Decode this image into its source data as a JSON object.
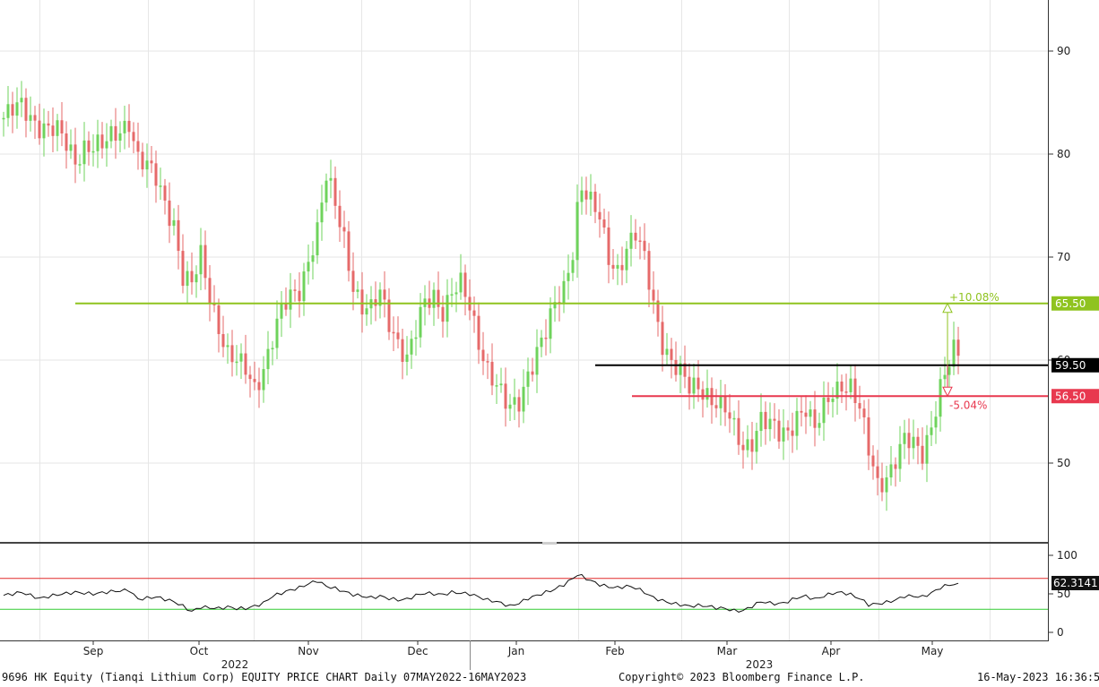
{
  "chart_data": {
    "type": "candlestick",
    "title": "9696 HK Equity (Tianqi Lithium Corp) EQUITY PRICE CHART",
    "period": "Daily 07MAY2022-16MAY2023",
    "price_axis": {
      "ticks": [
        50,
        60,
        70,
        80,
        90
      ]
    },
    "rsi_axis": {
      "ticks": [
        0,
        50,
        100
      ]
    },
    "x_months": [
      "Sep",
      "Oct",
      "Nov",
      "Dec",
      "Jan",
      "Feb",
      "Mar",
      "Apr",
      "May"
    ],
    "x_years": [
      "2022",
      "2023"
    ],
    "price_path": [
      [
        0,
        83.5
      ],
      [
        4,
        84.5
      ],
      [
        8,
        83.0
      ],
      [
        12,
        82.0
      ],
      [
        16,
        79.5
      ],
      [
        18,
        81.0
      ],
      [
        22,
        80.5
      ],
      [
        26,
        82.5
      ],
      [
        28,
        83.5
      ],
      [
        30,
        79.5
      ],
      [
        34,
        77.5
      ],
      [
        38,
        73.5
      ],
      [
        40,
        68.0
      ],
      [
        42,
        67.0
      ],
      [
        44,
        70.0
      ],
      [
        46,
        66.5
      ],
      [
        48,
        63.5
      ],
      [
        50,
        60.5
      ],
      [
        52,
        59.5
      ],
      [
        54,
        59.0
      ],
      [
        56,
        57.5
      ],
      [
        58,
        59.5
      ],
      [
        60,
        62.0
      ],
      [
        62,
        64.5
      ],
      [
        64,
        66.0
      ],
      [
        66,
        67.0
      ],
      [
        68,
        70.0
      ],
      [
        70,
        72.5
      ],
      [
        72,
        77.5
      ],
      [
        74,
        75.0
      ],
      [
        76,
        72.0
      ],
      [
        78,
        67.5
      ],
      [
        80,
        65.0
      ],
      [
        82,
        64.5
      ],
      [
        84,
        66.5
      ],
      [
        86,
        64.0
      ],
      [
        88,
        62.0
      ],
      [
        90,
        60.0
      ],
      [
        92,
        62.5
      ],
      [
        94,
        65.5
      ],
      [
        96,
        66.5
      ],
      [
        98,
        65.0
      ],
      [
        100,
        66.5
      ],
      [
        102,
        67.0
      ],
      [
        104,
        65.0
      ],
      [
        106,
        62.0
      ],
      [
        108,
        59.5
      ],
      [
        110,
        57.5
      ],
      [
        112,
        55.5
      ],
      [
        113,
        55.0
      ],
      [
        115,
        56.0
      ],
      [
        117,
        59.0
      ],
      [
        119,
        61.0
      ],
      [
        121,
        62.5
      ],
      [
        123,
        65.0
      ],
      [
        125,
        67.0
      ],
      [
        127,
        71.0
      ],
      [
        128,
        75.0
      ],
      [
        129,
        77.0
      ],
      [
        131,
        75.0
      ],
      [
        133,
        73.5
      ],
      [
        135,
        70.0
      ],
      [
        137,
        69.0
      ],
      [
        139,
        71.0
      ],
      [
        141,
        72.0
      ],
      [
        143,
        69.5
      ],
      [
        145,
        65.5
      ],
      [
        147,
        62.0
      ],
      [
        149,
        60.0
      ],
      [
        151,
        58.5
      ],
      [
        153,
        57.0
      ],
      [
        155,
        57.5
      ],
      [
        157,
        57.0
      ],
      [
        159,
        56.0
      ],
      [
        161,
        55.0
      ],
      [
        163,
        53.0
      ],
      [
        165,
        51.5
      ],
      [
        167,
        52.5
      ],
      [
        169,
        54.5
      ],
      [
        171,
        53.5
      ],
      [
        173,
        52.5
      ],
      [
        175,
        53.0
      ],
      [
        177,
        55.0
      ],
      [
        179,
        55.5
      ],
      [
        181,
        53.0
      ],
      [
        183,
        55.0
      ],
      [
        185,
        57.0
      ],
      [
        187,
        58.0
      ],
      [
        189,
        57.5
      ],
      [
        191,
        55.0
      ],
      [
        193,
        51.0
      ],
      [
        195,
        48.0
      ],
      [
        197,
        49.0
      ],
      [
        199,
        50.5
      ],
      [
        201,
        52.0
      ],
      [
        203,
        51.5
      ],
      [
        205,
        51.0
      ],
      [
        207,
        54.0
      ],
      [
        209,
        57.5
      ],
      [
        211,
        59.5
      ],
      [
        212,
        60.5
      ],
      [
        213,
        60.3
      ]
    ],
    "annotations": [
      {
        "label": "+10.08%",
        "color": "#8fc31f"
      },
      {
        "label": "-5.04%",
        "color": "#e8384f"
      }
    ],
    "levels": [
      {
        "value": 65.5,
        "label": "65.50",
        "color": "#8fc31f"
      },
      {
        "value": 59.5,
        "label": "59.50",
        "color": "#000000"
      },
      {
        "value": 56.5,
        "label": "56.50",
        "color": "#e8384f"
      }
    ],
    "rsi_levels": [
      70,
      30
    ],
    "rsi_value_label": "62.3141",
    "rsi_path": [
      [
        0,
        48
      ],
      [
        4,
        52
      ],
      [
        8,
        44
      ],
      [
        12,
        49
      ],
      [
        16,
        52
      ],
      [
        20,
        50
      ],
      [
        24,
        53
      ],
      [
        28,
        55
      ],
      [
        30,
        43
      ],
      [
        34,
        46
      ],
      [
        38,
        40
      ],
      [
        40,
        34
      ],
      [
        42,
        27
      ],
      [
        44,
        33
      ],
      [
        46,
        32
      ],
      [
        48,
        31
      ],
      [
        50,
        33
      ],
      [
        52,
        31
      ],
      [
        54,
        31
      ],
      [
        56,
        34
      ],
      [
        58,
        38
      ],
      [
        60,
        47
      ],
      [
        62,
        51
      ],
      [
        64,
        55
      ],
      [
        66,
        58
      ],
      [
        68,
        63
      ],
      [
        70,
        67
      ],
      [
        72,
        60
      ],
      [
        74,
        57
      ],
      [
        76,
        53
      ],
      [
        78,
        49
      ],
      [
        80,
        47
      ],
      [
        82,
        45
      ],
      [
        84,
        47
      ],
      [
        86,
        44
      ],
      [
        88,
        42
      ],
      [
        90,
        43
      ],
      [
        92,
        48
      ],
      [
        94,
        51
      ],
      [
        96,
        50
      ],
      [
        98,
        49
      ],
      [
        100,
        52
      ],
      [
        102,
        51
      ],
      [
        104,
        50
      ],
      [
        106,
        46
      ],
      [
        108,
        42
      ],
      [
        110,
        40
      ],
      [
        112,
        36
      ],
      [
        113,
        34
      ],
      [
        115,
        38
      ],
      [
        117,
        44
      ],
      [
        119,
        48
      ],
      [
        121,
        52
      ],
      [
        123,
        56
      ],
      [
        125,
        62
      ],
      [
        127,
        70
      ],
      [
        128,
        75
      ],
      [
        129,
        73
      ],
      [
        131,
        67
      ],
      [
        133,
        62
      ],
      [
        135,
        59
      ],
      [
        137,
        58
      ],
      [
        139,
        60
      ],
      [
        141,
        58
      ],
      [
        143,
        52
      ],
      [
        145,
        45
      ],
      [
        147,
        41
      ],
      [
        149,
        38
      ],
      [
        151,
        36
      ],
      [
        153,
        34
      ],
      [
        155,
        35
      ],
      [
        157,
        34
      ],
      [
        159,
        32
      ],
      [
        161,
        31
      ],
      [
        163,
        28
      ],
      [
        165,
        28
      ],
      [
        167,
        34
      ],
      [
        169,
        40
      ],
      [
        171,
        38
      ],
      [
        173,
        37
      ],
      [
        175,
        40
      ],
      [
        177,
        45
      ],
      [
        179,
        47
      ],
      [
        181,
        43
      ],
      [
        183,
        47
      ],
      [
        185,
        51
      ],
      [
        187,
        52
      ],
      [
        189,
        49
      ],
      [
        191,
        44
      ],
      [
        193,
        36
      ],
      [
        195,
        37
      ],
      [
        197,
        39
      ],
      [
        199,
        42
      ],
      [
        201,
        47
      ],
      [
        203,
        47
      ],
      [
        205,
        46
      ],
      [
        207,
        51
      ],
      [
        209,
        58
      ],
      [
        211,
        62
      ],
      [
        213,
        62
      ]
    ]
  },
  "footer": {
    "left": "9696 HK Equity (Tianqi Lithium Corp) EQUITY PRICE CHART  Daily 07MAY2022-16MAY2023",
    "center": "Copyright© 2023 Bloomberg Finance L.P.",
    "right": "16-May-2023 16:36:55"
  }
}
